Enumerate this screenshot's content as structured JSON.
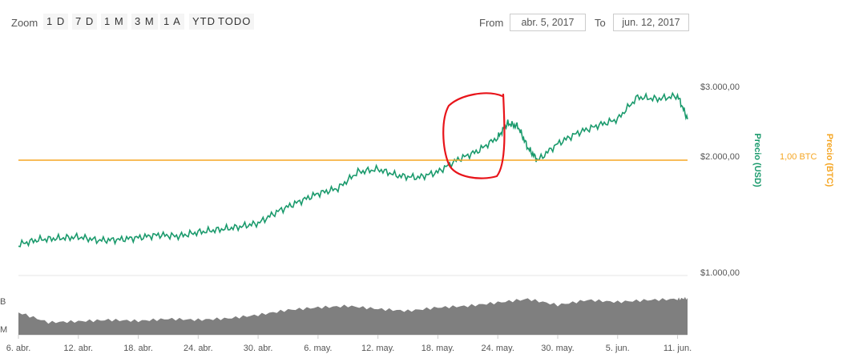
{
  "toolbar": {
    "zoom_label": "Zoom",
    "zoom_buttons": [
      "1 D",
      "7 D",
      "1 M",
      "3 M",
      "1 A",
      "YTD",
      "TODO"
    ],
    "from_label": "From",
    "from_value": "abr. 5, 2017",
    "to_label": "To",
    "to_value": "jun. 12, 2017"
  },
  "colors": {
    "price_line": "#1a9a6c",
    "btc_line": "#f5a623",
    "volume_fill": "#7f7f7f",
    "annotation": "#e8141a",
    "axis_text": "#555555"
  },
  "chart_data": {
    "type": "line",
    "x_tick_labels": [
      "6. abr.",
      "12. abr.",
      "18. abr.",
      "24. abr.",
      "30. abr.",
      "6. may.",
      "12. may.",
      "18. may.",
      "24. may.",
      "30. may.",
      "5. jun.",
      "11. jun."
    ],
    "x_range": [
      "2017-04-06",
      "2017-06-12"
    ],
    "y_tick_labels": [
      "$3.000,00",
      "$2.000,00",
      "$1.000,00"
    ],
    "ylim": [
      1000,
      3000
    ],
    "ylabel": "Precio (USD)",
    "y2label": "Precio (BTC)",
    "btc_label": "1,00 BTC",
    "volume_tick_labels": [
      "B",
      "M"
    ],
    "price_series": {
      "name": "Precio (USD)",
      "x": [
        "2017-04-06",
        "2017-04-08",
        "2017-04-10",
        "2017-04-12",
        "2017-04-14",
        "2017-04-16",
        "2017-04-18",
        "2017-04-20",
        "2017-04-22",
        "2017-04-24",
        "2017-04-26",
        "2017-04-28",
        "2017-04-30",
        "2017-05-02",
        "2017-05-04",
        "2017-05-06",
        "2017-05-08",
        "2017-05-10",
        "2017-05-12",
        "2017-05-14",
        "2017-05-16",
        "2017-05-18",
        "2017-05-20",
        "2017-05-22",
        "2017-05-24",
        "2017-05-25",
        "2017-05-26",
        "2017-05-27",
        "2017-05-28",
        "2017-05-30",
        "2017-06-01",
        "2017-06-03",
        "2017-06-05",
        "2017-06-07",
        "2017-06-09",
        "2017-06-11",
        "2017-06-12"
      ],
      "values": [
        1180,
        1215,
        1225,
        1235,
        1210,
        1215,
        1230,
        1250,
        1240,
        1270,
        1290,
        1310,
        1340,
        1440,
        1520,
        1600,
        1650,
        1820,
        1850,
        1780,
        1760,
        1820,
        1960,
        2060,
        2230,
        2420,
        2380,
        2100,
        1950,
        2150,
        2290,
        2390,
        2480,
        2820,
        2790,
        2840,
        2480
      ]
    },
    "btc_series": {
      "name": "1,00 BTC",
      "value": 2000
    },
    "volume_series": {
      "x": [
        "2017-04-06",
        "2017-04-09",
        "2017-04-12",
        "2017-04-15",
        "2017-04-18",
        "2017-04-21",
        "2017-04-24",
        "2017-04-27",
        "2017-04-30",
        "2017-05-03",
        "2017-05-06",
        "2017-05-09",
        "2017-05-12",
        "2017-05-15",
        "2017-05-18",
        "2017-05-21",
        "2017-05-24",
        "2017-05-27",
        "2017-05-30",
        "2017-06-02",
        "2017-06-05",
        "2017-06-08",
        "2017-06-11",
        "2017-06-12"
      ],
      "values": [
        0.45,
        0.25,
        0.27,
        0.3,
        0.28,
        0.32,
        0.3,
        0.33,
        0.4,
        0.5,
        0.55,
        0.58,
        0.52,
        0.48,
        0.55,
        0.58,
        0.65,
        0.72,
        0.6,
        0.7,
        0.66,
        0.7,
        0.72,
        0.74
      ]
    }
  }
}
